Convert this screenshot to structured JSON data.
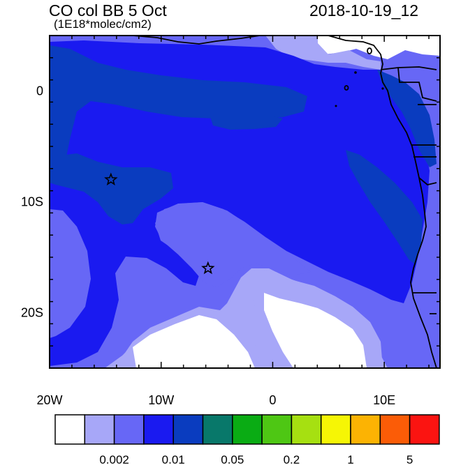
{
  "header": {
    "title": "CO col BB 5 Oct",
    "units": "(1E18*molec/cm2)",
    "datetime": "2018-10-19_12"
  },
  "colors": {
    "levels": [
      "#ffffff",
      "#a7a7f8",
      "#6767f6",
      "#1a1af0",
      "#0a3cbf",
      "#08786a",
      "#0aac14",
      "#4ec714",
      "#a6e011",
      "#f6f605",
      "#fcb303",
      "#fb5c07",
      "#fb1411"
    ],
    "coast": "#000000"
  },
  "map": {
    "lon_range": [
      -20,
      15
    ],
    "lat_range": [
      -25,
      5
    ],
    "x_ticks": [
      {
        "value": -20,
        "label": "20W"
      },
      {
        "value": -10,
        "label": "10W"
      },
      {
        "value": 0,
        "label": "0"
      },
      {
        "value": 10,
        "label": "10E"
      }
    ],
    "y_ticks": [
      {
        "value": 0,
        "label": "0"
      },
      {
        "value": -10,
        "label": "10S"
      },
      {
        "value": -20,
        "label": "20S"
      }
    ],
    "markers": [
      {
        "name": "star-marker-1",
        "lon": -14.5,
        "lat": -8.0
      },
      {
        "name": "star-marker-2",
        "lon": -5.8,
        "lat": -16.0
      }
    ]
  },
  "colorbar": {
    "labels": [
      {
        "after_box": 2,
        "label": "0.002"
      },
      {
        "after_box": 4,
        "label": "0.01"
      },
      {
        "after_box": 6,
        "label": "0.05"
      },
      {
        "after_box": 8,
        "label": "0.2"
      },
      {
        "after_box": 10,
        "label": "1"
      },
      {
        "after_box": 12,
        "label": "5"
      }
    ]
  }
}
